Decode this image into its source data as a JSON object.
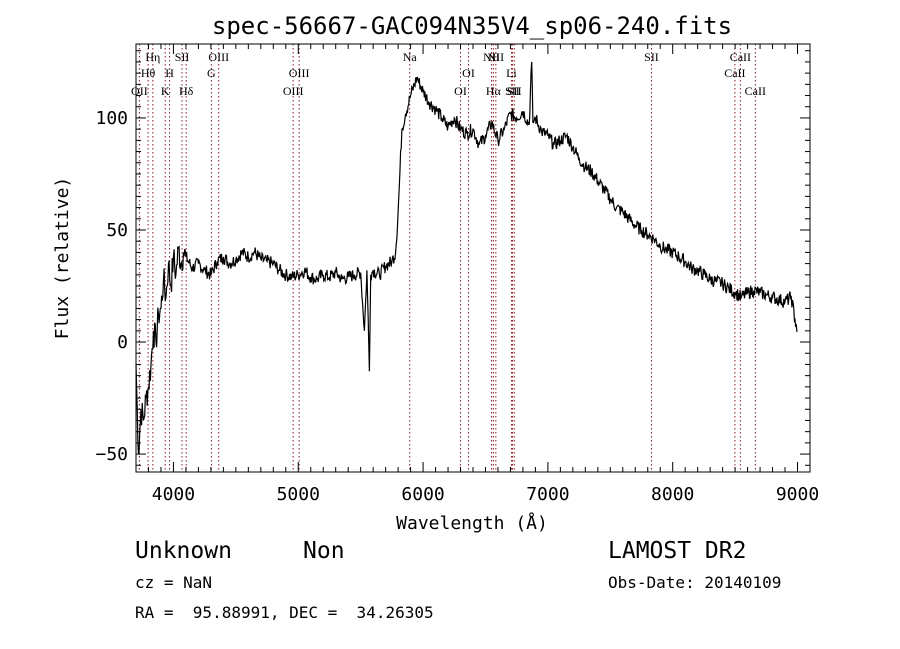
{
  "chart_data": {
    "type": "line",
    "title": "spec-56667-GAC094N35V4_sp06-240.fits",
    "xlabel": "Wavelength (Å)",
    "ylabel": "Flux (relative)",
    "xlim": [
      3700,
      9100
    ],
    "ylim": [
      -58,
      133
    ],
    "x_ticks": [
      4000,
      5000,
      6000,
      7000,
      8000,
      9000
    ],
    "y_ticks": [
      -50,
      0,
      50,
      100
    ],
    "x_tick_labels": [
      "4000",
      "5000",
      "6000",
      "7000",
      "8000",
      "9000"
    ],
    "y_tick_labels": [
      "−50",
      "0",
      "50",
      "100"
    ],
    "grid": false,
    "line_color": "#000000",
    "marker_color": "#8b1a1a",
    "series": [
      {
        "x": [
          3700,
          3720,
          3740,
          3760,
          3780,
          3800,
          3820,
          3840,
          3860,
          3880,
          3900,
          3920,
          3940,
          3960,
          3980,
          4000,
          4020,
          4040,
          4060,
          4080,
          4100,
          4150,
          4200,
          4250,
          4300,
          4350,
          4400,
          4450,
          4500,
          4550,
          4600,
          4650,
          4700,
          4750,
          4800,
          4850,
          4900,
          4950,
          5000,
          5050,
          5100,
          5150,
          5200,
          5250,
          5300,
          5350,
          5400,
          5450,
          5500,
          5530,
          5550,
          5570,
          5580,
          5600,
          5650,
          5700,
          5750,
          5780,
          5800,
          5830,
          5860,
          5900,
          5950,
          6000,
          6050,
          6100,
          6150,
          6200,
          6250,
          6300,
          6350,
          6400,
          6450,
          6500,
          6550,
          6600,
          6650,
          6700,
          6750,
          6800,
          6850,
          6870,
          6880,
          6900,
          6950,
          7000,
          7050,
          7100,
          7150,
          7200,
          7250,
          7300,
          7350,
          7400,
          7450,
          7500,
          7550,
          7600,
          7650,
          7700,
          7750,
          7800,
          7850,
          7900,
          7950,
          8000,
          8050,
          8100,
          8150,
          8200,
          8250,
          8300,
          8350,
          8400,
          8450,
          8500,
          8550,
          8600,
          8650,
          8700,
          8750,
          8800,
          8850,
          8900,
          8950,
          8980,
          9000
        ],
        "y": [
          -10,
          -50,
          -30,
          -35,
          -25,
          -20,
          -10,
          5,
          0,
          12,
          15,
          28,
          20,
          35,
          25,
          38,
          30,
          42,
          35,
          40,
          38,
          33,
          35,
          32,
          30,
          36,
          38,
          35,
          37,
          40,
          38,
          40,
          37,
          36,
          35,
          32,
          30,
          29,
          30,
          32,
          29,
          28,
          30,
          29,
          31,
          28,
          29,
          30,
          31,
          5,
          32,
          -13,
          30,
          32,
          30,
          34,
          36,
          40,
          58,
          95,
          102,
          110,
          118,
          112,
          107,
          104,
          100,
          96,
          100,
          95,
          93,
          95,
          88,
          92,
          98,
          90,
          95,
          102,
          100,
          103,
          97,
          125,
          98,
          100,
          94,
          92,
          88,
          90,
          92,
          87,
          82,
          78,
          76,
          72,
          68,
          64,
          60,
          58,
          55,
          52,
          50,
          48,
          46,
          43,
          41,
          40,
          38,
          36,
          33,
          32,
          30,
          28,
          27,
          26,
          24,
          22,
          20,
          22,
          23,
          22,
          21,
          20,
          19,
          18,
          20,
          10,
          5
        ]
      }
    ],
    "line_markers": [
      {
        "w": 3727,
        "label": "OII",
        "row": 3
      },
      {
        "w": 3797,
        "label": "Hθ",
        "row": 2
      },
      {
        "w": 3835,
        "label": "Hη",
        "row": 1
      },
      {
        "w": 3934,
        "label": "K",
        "row": 3
      },
      {
        "w": 3969,
        "label": "H",
        "row": 2
      },
      {
        "w": 4069,
        "label": "SII",
        "row": 1
      },
      {
        "w": 4102,
        "label": "Hδ",
        "row": 3
      },
      {
        "w": 4304,
        "label": "G",
        "row": 2
      },
      {
        "w": 4363,
        "label": "OIII",
        "row": 1
      },
      {
        "w": 4959,
        "label": "OIII",
        "row": 3
      },
      {
        "w": 5007,
        "label": "OIII",
        "row": 2
      },
      {
        "w": 5893,
        "label": "Na",
        "row": 1
      },
      {
        "w": 6300,
        "label": "OI",
        "row": 3
      },
      {
        "w": 6364,
        "label": "OI",
        "row": 2
      },
      {
        "w": 6548,
        "label": "NII",
        "row": 1
      },
      {
        "w": 6563,
        "label": "Hα",
        "row": 3
      },
      {
        "w": 6583,
        "label": "NII",
        "row": 1
      },
      {
        "w": 6708,
        "label": "Li",
        "row": 2
      },
      {
        "w": 6716,
        "label": "SII",
        "row": 3
      },
      {
        "w": 6731,
        "label": "SII",
        "row": 3
      },
      {
        "w": 7830,
        "label": "SII",
        "row": 1
      },
      {
        "w": 8498,
        "label": "CaII",
        "row": 2
      },
      {
        "w": 8542,
        "label": "CaII",
        "row": 1
      },
      {
        "w": 8662,
        "label": "CaII",
        "row": 3
      }
    ]
  },
  "footer": {
    "class_label": "Unknown",
    "subclass_label": "Non",
    "redshift": "cz = NaN",
    "coords": "RA =  95.88991, DEC =  34.26305",
    "survey": "LAMOST DR2",
    "obs_date": "Obs-Date: 20140109"
  }
}
